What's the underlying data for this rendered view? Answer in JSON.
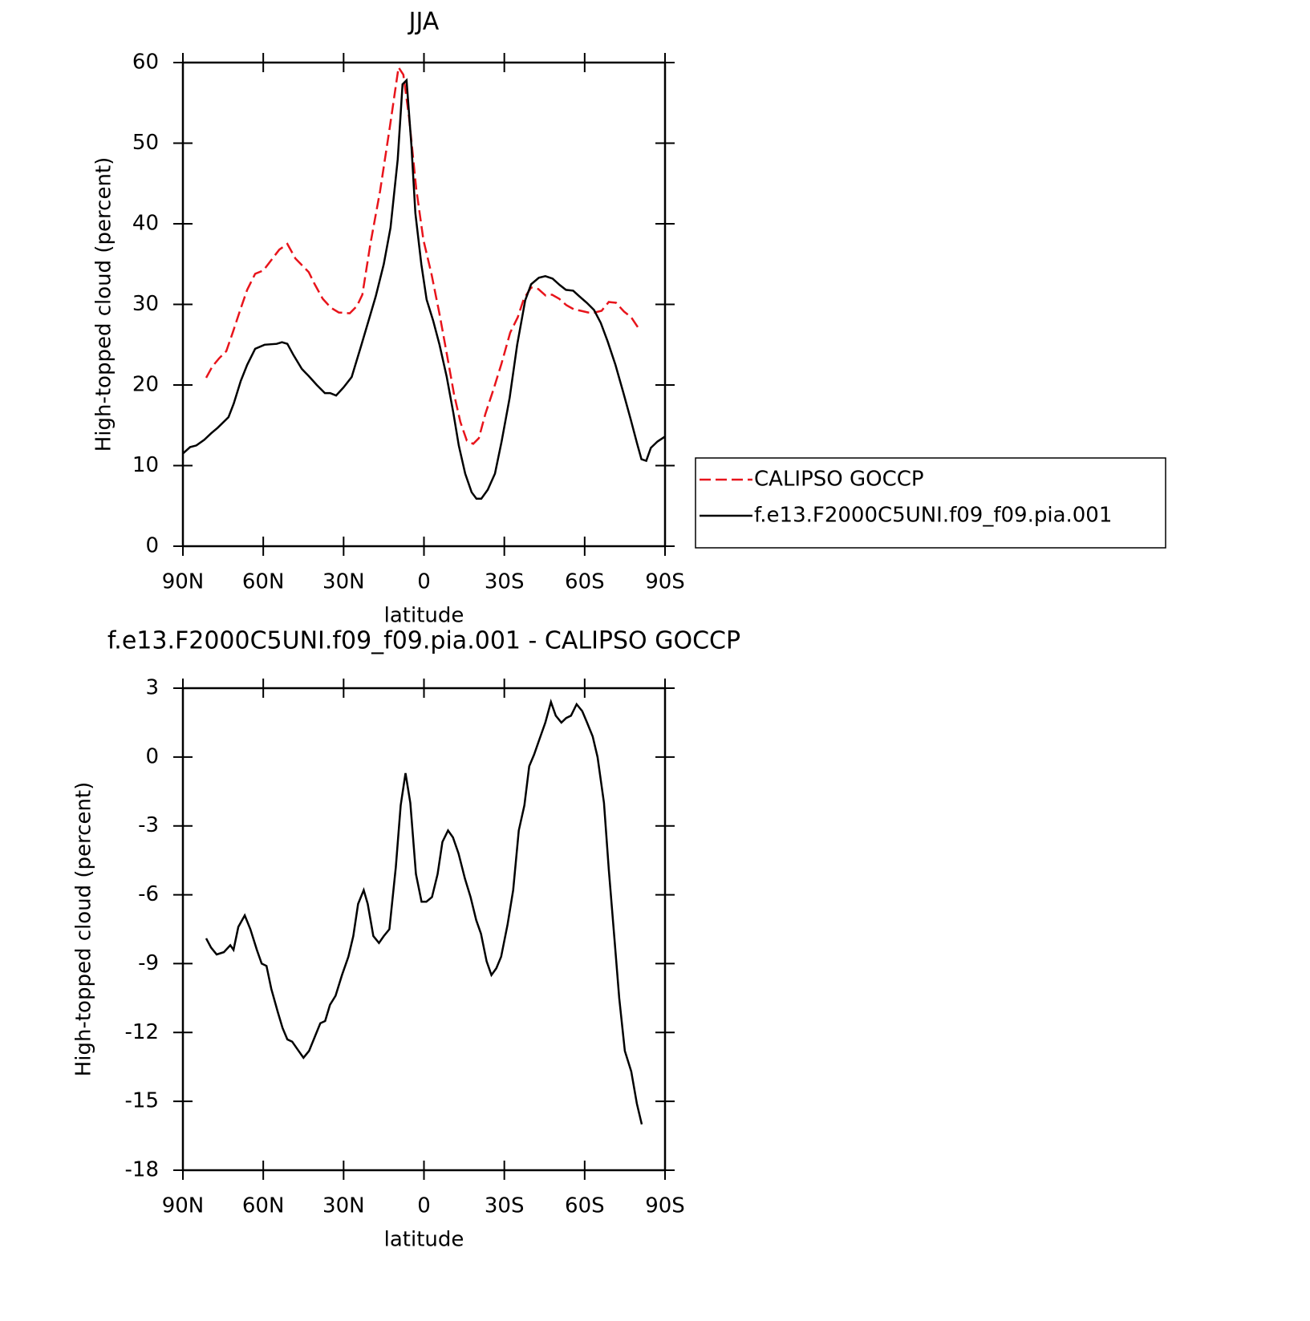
{
  "chart_data": [
    {
      "type": "line",
      "title": "JJA",
      "xlabel": "latitude",
      "ylabel": "High-topped cloud (percent)",
      "xlim": [
        90,
        -90
      ],
      "ylim": [
        0,
        60
      ],
      "xticks": [
        {
          "value": 90,
          "label": "90N"
        },
        {
          "value": 60,
          "label": "60N"
        },
        {
          "value": 30,
          "label": "30N"
        },
        0,
        {
          "value": -30,
          "label": "30S"
        },
        {
          "value": -60,
          "label": "60S"
        },
        {
          "value": -90,
          "label": "90S"
        }
      ],
      "yticks": [
        0,
        10,
        20,
        30,
        40,
        50,
        60
      ],
      "legend": "right",
      "series": [
        {
          "name": "CALIPSO GOCCP",
          "color": "#e8141b",
          "style": "dashed",
          "x": [
            81.3,
            79,
            76.5,
            73.8,
            71.4,
            68.4,
            66,
            63,
            60,
            57,
            54,
            51,
            48,
            43,
            40.8,
            37.8,
            34.8,
            31.8,
            27.7,
            25,
            23,
            20,
            16.4,
            12.8,
            9.5,
            7.7,
            5.6,
            2.9,
            0.2,
            -2.8,
            -5.8,
            -8.5,
            -11.2,
            -13.6,
            -16,
            -18.4,
            -20.5,
            -22.9,
            -25.9,
            -28.9,
            -32.2,
            -35,
            -37.3,
            -40,
            -42.7,
            -45.4,
            -47.8,
            -50.5,
            -53.2,
            -55.9,
            -58.6,
            -61.3,
            -63.7,
            -66.3,
            -69,
            -71.7,
            -74.7,
            -77.4,
            -80.4
          ],
          "values": [
            20.9,
            22.3,
            23.3,
            24.2,
            26.5,
            29.5,
            31.8,
            33.8,
            34.2,
            35.5,
            36.8,
            37.5,
            35.7,
            34,
            32.5,
            30.7,
            29.6,
            29,
            28.9,
            29.8,
            31.2,
            37.5,
            44,
            51.9,
            59.4,
            58.5,
            53.3,
            44.4,
            38,
            33.8,
            28.8,
            23.9,
            18.9,
            15.4,
            13.1,
            12.7,
            13.4,
            16.4,
            19.4,
            22.6,
            26.5,
            28.4,
            30.7,
            32.1,
            31.9,
            31.1,
            31.2,
            30.7,
            29.9,
            29.4,
            29.2,
            29,
            29,
            29.2,
            30.3,
            30.2,
            29.1,
            28.4,
            26.9
          ]
        },
        {
          "name": "f.e13.F2000C5UNI.f09_f09.pia.001",
          "color": "#000000",
          "style": "solid",
          "x": [
            90,
            87.3,
            85,
            82,
            79.5,
            77,
            73,
            71,
            68.4,
            66,
            63,
            59.5,
            55,
            53,
            51,
            48.7,
            45.6,
            43,
            40,
            37,
            35,
            32.8,
            30,
            27,
            23.5,
            20.5,
            18,
            15,
            12.5,
            9.8,
            8,
            6.5,
            4.7,
            3.2,
            1,
            -1,
            -3.4,
            -5.8,
            -8.5,
            -11,
            -13,
            -15.4,
            -17.8,
            -19.6,
            -21.4,
            -23.8,
            -26.5,
            -29,
            -32,
            -34.8,
            -37.8,
            -40,
            -42.9,
            -45.3,
            -48,
            -50.7,
            -53,
            -55.7,
            -58,
            -60.8,
            -63.5,
            -66,
            -68.6,
            -71.5,
            -74.5,
            -77.2,
            -79.6,
            -81.2,
            -83,
            -84.7,
            -87.2,
            -90
          ],
          "values": [
            11.5,
            12.3,
            12.5,
            13.2,
            14,
            14.7,
            16,
            17.7,
            20.5,
            22.5,
            24.5,
            25,
            25.1,
            25.3,
            25.1,
            23.7,
            22,
            21.1,
            20,
            19,
            19,
            18.7,
            19.7,
            21,
            24.8,
            28.2,
            31,
            35,
            39.5,
            48,
            57.3,
            57.8,
            49.8,
            41.3,
            35,
            30.6,
            28,
            25,
            21,
            16.5,
            12.5,
            9,
            6.7,
            5.9,
            5.9,
            7,
            9,
            13,
            18.4,
            25,
            30.5,
            32.5,
            33.3,
            33.5,
            33.2,
            32.4,
            31.8,
            31.7,
            31,
            30.2,
            29.3,
            27.7,
            25.4,
            22.5,
            19,
            15.7,
            12.7,
            10.8,
            10.6,
            12.2,
            13,
            13.6
          ]
        }
      ]
    },
    {
      "type": "line",
      "title": "f.e13.F2000C5UNI.f09_f09.pia.001 - CALIPSO GOCCP",
      "xlabel": "latitude",
      "ylabel": "High-topped cloud (percent)",
      "xlim": [
        90,
        -90
      ],
      "ylim": [
        -18,
        3
      ],
      "xticks": [
        {
          "value": 90,
          "label": "90N"
        },
        {
          "value": 60,
          "label": "60N"
        },
        {
          "value": 30,
          "label": "30N"
        },
        0,
        {
          "value": -30,
          "label": "30S"
        },
        {
          "value": -60,
          "label": "60S"
        },
        {
          "value": -90,
          "label": "90S"
        }
      ],
      "yticks": [
        -18,
        -15,
        -12,
        -9,
        -6,
        -3,
        0,
        3
      ],
      "series": [
        {
          "color": "#000000",
          "style": "solid",
          "x": [
            81.3,
            79.5,
            77.4,
            74.7,
            72.3,
            71.1,
            69.3,
            66.9,
            64.8,
            62.4,
            60.6,
            58.8,
            57,
            54.6,
            52.8,
            51,
            49.2,
            46.8,
            45,
            42.9,
            40.8,
            38.7,
            36.9,
            35.1,
            33,
            30.6,
            28.2,
            26.4,
            24.6,
            22.5,
            21,
            18.9,
            16.8,
            15,
            12.9,
            10.5,
            8.7,
            6.9,
            5.1,
            3,
            0.9,
            -0.9,
            -3,
            -5.1,
            -6.9,
            -9,
            -10.8,
            -12.9,
            -15.3,
            -17.4,
            -19.5,
            -21.3,
            -23.4,
            -25.2,
            -27,
            -28.8,
            -31.2,
            -33.3,
            -35.4,
            -37.5,
            -39.3,
            -41.1,
            -43.2,
            -45.3,
            -47.4,
            -49.2,
            -51.3,
            -53.1,
            -54.9,
            -57,
            -59.1,
            -60.9,
            -63,
            -64.8,
            -67.2,
            -69,
            -71.1,
            -72.9,
            -75,
            -77.4,
            -79.5,
            -81.3
          ],
          "values": [
            -7.9,
            -8.3,
            -8.6,
            -8.5,
            -8.2,
            -8.4,
            -7.4,
            -6.9,
            -7.5,
            -8.4,
            -9,
            -9.1,
            -10.1,
            -11.1,
            -11.8,
            -12.3,
            -12.4,
            -12.8,
            -13.1,
            -12.8,
            -12.2,
            -11.6,
            -11.5,
            -10.8,
            -10.4,
            -9.5,
            -8.7,
            -7.8,
            -6.4,
            -5.8,
            -6.4,
            -7.8,
            -8.1,
            -7.8,
            -7.5,
            -4.8,
            -2.1,
            -0.7,
            -2,
            -5.1,
            -6.3,
            -6.3,
            -6.1,
            -5.1,
            -3.7,
            -3.2,
            -3.5,
            -4.2,
            -5.3,
            -6.1,
            -7.1,
            -7.7,
            -8.9,
            -9.5,
            -9.2,
            -8.7,
            -7.3,
            -5.8,
            -3.2,
            -2.1,
            -0.4,
            0.1,
            0.8,
            1.5,
            2.4,
            1.8,
            1.5,
            1.7,
            1.8,
            2.3,
            2,
            1.5,
            0.9,
            0,
            -2,
            -4.9,
            -7.9,
            -10.5,
            -12.8,
            -13.7,
            -15.1,
            -16
          ]
        }
      ]
    }
  ]
}
